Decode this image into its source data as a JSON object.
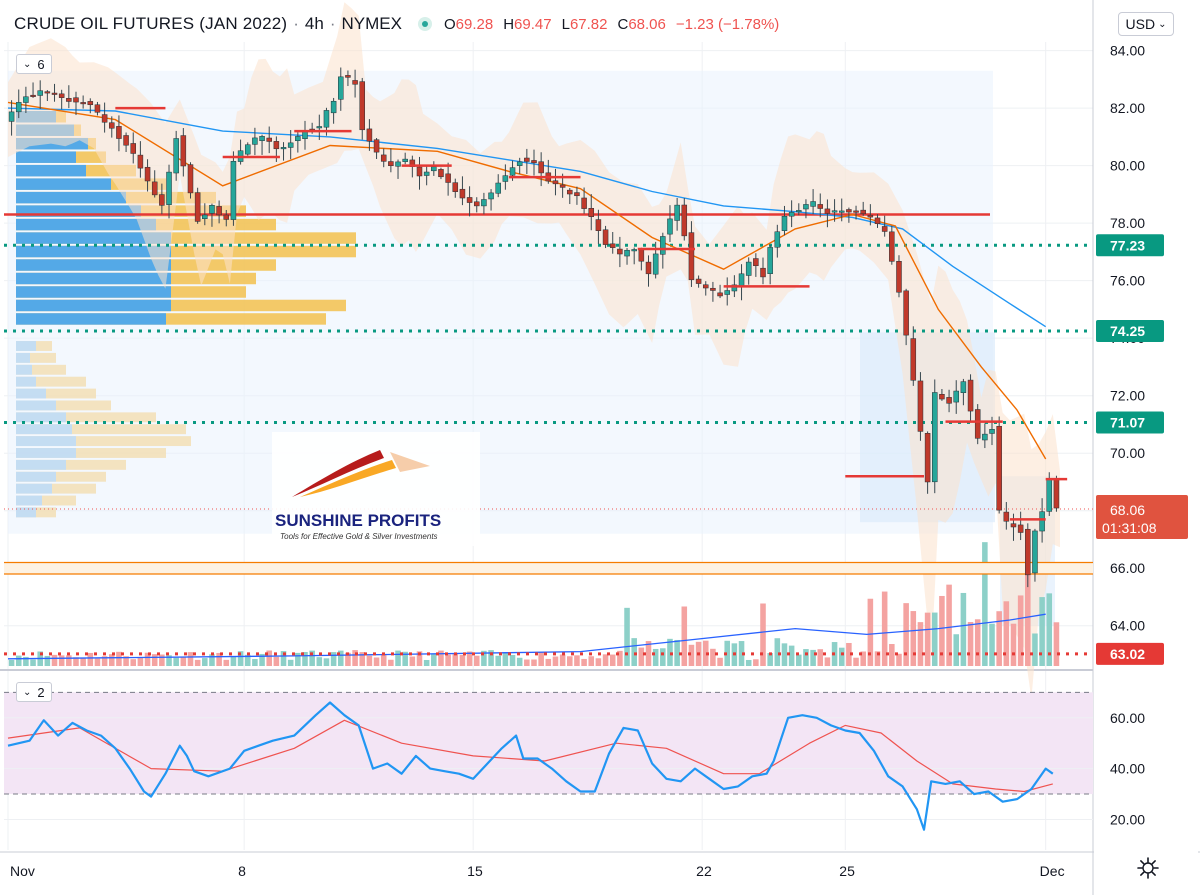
{
  "header": {
    "title": "CRUDE OIL FUTURES (JAN 2022)",
    "interval": "4h",
    "exchange": "NYMEX",
    "ohlc": {
      "o_label": "O",
      "o": "69.28",
      "h_label": "H",
      "h": "69.47",
      "l_label": "L",
      "l": "67.82",
      "c_label": "C",
      "c": "68.06",
      "change": "−1.23 (−1.78%)"
    }
  },
  "currency_button": "USD",
  "main_pane_counter": "6",
  "rsi_pane_counter": "2",
  "watermark": {
    "brand": "SUNSHINE PROFITS",
    "tagline": "Tools for Effective Gold & Silver Investments"
  },
  "colors": {
    "up": "#26a69a",
    "down": "#ef5350",
    "level": "#089981",
    "support": "#f57c00",
    "rsi_line": "#2196f3",
    "rsi_signal": "#ef5350",
    "rsi_band": "#e1bee7",
    "ma_fast": "#ef6c00",
    "ma_slow": "#2196f3",
    "volume_avg": "#2962ff",
    "price_label": "#e0533f"
  },
  "chart_data": [
    {
      "type": "candlestick",
      "instrument": "CRUDE OIL FUTURES (JAN 2022)",
      "timeframe": "4h",
      "y_ticks": [
        "84.00",
        "82.00",
        "80.00",
        "78.00",
        "76.00",
        "74.00",
        "72.00",
        "70.00",
        "68.00",
        "66.00",
        "64.00"
      ],
      "ylim": [
        62.6,
        84.3
      ],
      "x_ticks": [
        "Nov",
        "8",
        "15",
        "22",
        "25",
        "Dec"
      ],
      "x_tick_bar_index": [
        0,
        33,
        65,
        97,
        117,
        145
      ],
      "bar_count": 147,
      "close_path": [
        [
          0,
          81.6
        ],
        [
          3,
          82.4
        ],
        [
          6,
          82.6
        ],
        [
          9,
          82.3
        ],
        [
          12,
          82.1
        ],
        [
          15,
          81.3
        ],
        [
          18,
          80.4
        ],
        [
          21,
          79.0
        ],
        [
          22,
          78.6
        ],
        [
          24,
          81.0
        ],
        [
          26,
          79.0
        ],
        [
          27,
          78.1
        ],
        [
          29,
          78.6
        ],
        [
          31,
          78.1
        ],
        [
          32,
          80.1
        ],
        [
          34,
          80.8
        ],
        [
          36,
          81.0
        ],
        [
          38,
          80.6
        ],
        [
          40,
          80.8
        ],
        [
          42,
          81.2
        ],
        [
          44,
          81.4
        ],
        [
          46,
          82.3
        ],
        [
          47,
          83.1
        ],
        [
          49,
          82.9
        ],
        [
          50,
          81.3
        ],
        [
          52,
          80.4
        ],
        [
          54,
          80.0
        ],
        [
          56,
          80.2
        ],
        [
          58,
          79.6
        ],
        [
          60,
          79.9
        ],
        [
          62,
          79.4
        ],
        [
          64,
          78.9
        ],
        [
          66,
          78.6
        ],
        [
          68,
          79.1
        ],
        [
          70,
          79.7
        ],
        [
          72,
          80.2
        ],
        [
          74,
          80.1
        ],
        [
          76,
          79.5
        ],
        [
          78,
          79.2
        ],
        [
          80,
          78.9
        ],
        [
          82,
          78.2
        ],
        [
          84,
          77.3
        ],
        [
          86,
          76.9
        ],
        [
          88,
          77.1
        ],
        [
          90,
          76.2
        ],
        [
          92,
          77.6
        ],
        [
          94,
          78.6
        ],
        [
          95,
          77.6
        ],
        [
          96,
          76.0
        ],
        [
          98,
          75.7
        ],
        [
          100,
          75.5
        ],
        [
          102,
          75.8
        ],
        [
          104,
          76.7
        ],
        [
          106,
          76.2
        ],
        [
          107,
          77.2
        ],
        [
          109,
          78.3
        ],
        [
          111,
          78.5
        ],
        [
          113,
          78.7
        ],
        [
          115,
          78.4
        ],
        [
          117,
          78.5
        ],
        [
          119,
          78.4
        ],
        [
          121,
          78.2
        ],
        [
          123,
          77.7
        ],
        [
          125,
          75.6
        ],
        [
          127,
          72.5
        ],
        [
          129,
          69.0
        ],
        [
          130,
          72.1
        ],
        [
          132,
          71.8
        ],
        [
          134,
          72.5
        ],
        [
          136,
          70.5
        ],
        [
          138,
          70.9
        ],
        [
          139,
          68.0
        ],
        [
          140,
          67.6
        ],
        [
          142,
          67.3
        ],
        [
          143,
          65.8
        ],
        [
          144,
          67.3
        ],
        [
          145,
          68.0
        ],
        [
          146,
          69.1
        ],
        [
          147,
          68.06
        ]
      ],
      "moving_average_short_path": [
        [
          0,
          82.2
        ],
        [
          15,
          81.6
        ],
        [
          30,
          79.3
        ],
        [
          45,
          80.7
        ],
        [
          60,
          80.5
        ],
        [
          70,
          79.8
        ],
        [
          80,
          79.2
        ],
        [
          90,
          77.5
        ],
        [
          100,
          76.4
        ],
        [
          110,
          77.8
        ],
        [
          118,
          78.3
        ],
        [
          124,
          77.9
        ],
        [
          130,
          75.0
        ],
        [
          136,
          73.0
        ],
        [
          141,
          71.5
        ],
        [
          145,
          69.8
        ]
      ],
      "moving_average_long_path": [
        [
          0,
          82.0
        ],
        [
          15,
          81.9
        ],
        [
          30,
          81.2
        ],
        [
          45,
          81.0
        ],
        [
          60,
          80.6
        ],
        [
          70,
          80.2
        ],
        [
          80,
          79.8
        ],
        [
          90,
          79.1
        ],
        [
          100,
          78.6
        ],
        [
          110,
          78.4
        ],
        [
          118,
          78.2
        ],
        [
          125,
          77.8
        ],
        [
          132,
          76.5
        ],
        [
          140,
          75.2
        ],
        [
          145,
          74.4
        ]
      ],
      "horizontal_levels": [
        {
          "value": 77.23,
          "label": "77.23",
          "style": "dotted"
        },
        {
          "value": 74.25,
          "label": "74.25",
          "style": "dotted"
        },
        {
          "value": 71.07,
          "label": "71.07",
          "style": "dotted"
        },
        {
          "value": 63.02,
          "label": "63.02",
          "style": "dotted-red"
        }
      ],
      "support_zone": [
        65.8,
        66.2
      ],
      "resistance_line": 78.3,
      "last_price": {
        "value": 68.06,
        "label": "68.06",
        "countdown": "01:31:08"
      },
      "volume_ma_path": [
        [
          0,
          62.85
        ],
        [
          40,
          62.95
        ],
        [
          80,
          63.1
        ],
        [
          95,
          63.5
        ],
        [
          110,
          63.9
        ],
        [
          120,
          63.7
        ],
        [
          130,
          63.9
        ],
        [
          140,
          64.2
        ],
        [
          145,
          64.4
        ]
      ]
    },
    {
      "type": "line",
      "name": "RSI",
      "y_ticks": [
        "60.00",
        "40.00",
        "20.00"
      ],
      "ylim": [
        8,
        78
      ],
      "band": [
        30,
        70
      ],
      "rsi_path": [
        [
          0,
          49
        ],
        [
          3,
          51
        ],
        [
          5,
          59
        ],
        [
          7,
          53
        ],
        [
          9,
          58
        ],
        [
          11,
          55
        ],
        [
          13,
          53
        ],
        [
          15,
          48
        ],
        [
          17,
          40
        ],
        [
          19,
          31
        ],
        [
          20,
          29
        ],
        [
          22,
          38
        ],
        [
          24,
          49
        ],
        [
          25,
          45
        ],
        [
          26,
          39
        ],
        [
          28,
          37
        ],
        [
          31,
          40
        ],
        [
          33,
          47
        ],
        [
          35,
          49
        ],
        [
          37,
          51
        ],
        [
          40,
          53
        ],
        [
          43,
          61
        ],
        [
          45,
          66
        ],
        [
          47,
          61
        ],
        [
          49,
          57
        ],
        [
          51,
          40
        ],
        [
          53,
          42
        ],
        [
          55,
          38
        ],
        [
          57,
          45
        ],
        [
          59,
          40
        ],
        [
          61,
          39
        ],
        [
          63,
          38
        ],
        [
          65,
          36
        ],
        [
          67,
          42
        ],
        [
          69,
          48
        ],
        [
          71,
          53
        ],
        [
          72,
          44
        ],
        [
          74,
          44
        ],
        [
          76,
          40
        ],
        [
          78,
          35
        ],
        [
          80,
          31
        ],
        [
          82,
          31
        ],
        [
          84,
          46
        ],
        [
          86,
          56
        ],
        [
          88,
          55
        ],
        [
          90,
          42
        ],
        [
          92,
          36
        ],
        [
          94,
          35
        ],
        [
          96,
          40
        ],
        [
          98,
          36
        ],
        [
          100,
          32
        ],
        [
          102,
          33
        ],
        [
          104,
          37
        ],
        [
          106,
          38
        ],
        [
          107,
          43
        ],
        [
          109,
          60
        ],
        [
          111,
          61
        ],
        [
          113,
          60
        ],
        [
          115,
          57
        ],
        [
          117,
          55
        ],
        [
          119,
          54
        ],
        [
          121,
          47
        ],
        [
          123,
          37
        ],
        [
          125,
          33
        ],
        [
          127,
          24
        ],
        [
          128,
          16
        ],
        [
          129,
          35
        ],
        [
          131,
          34
        ],
        [
          133,
          35
        ],
        [
          135,
          30
        ],
        [
          137,
          31
        ],
        [
          139,
          27
        ],
        [
          141,
          28
        ],
        [
          143,
          32
        ],
        [
          145,
          40
        ],
        [
          146,
          38
        ]
      ],
      "signal_path": [
        [
          0,
          52
        ],
        [
          10,
          56
        ],
        [
          20,
          40
        ],
        [
          30,
          39
        ],
        [
          40,
          48
        ],
        [
          47,
          59
        ],
        [
          55,
          50
        ],
        [
          65,
          45
        ],
        [
          75,
          43
        ],
        [
          85,
          50
        ],
        [
          92,
          48
        ],
        [
          100,
          38
        ],
        [
          105,
          38
        ],
        [
          112,
          50
        ],
        [
          117,
          57
        ],
        [
          122,
          54
        ],
        [
          127,
          43
        ],
        [
          132,
          34
        ],
        [
          138,
          32
        ],
        [
          142,
          31
        ],
        [
          146,
          34
        ]
      ]
    }
  ]
}
